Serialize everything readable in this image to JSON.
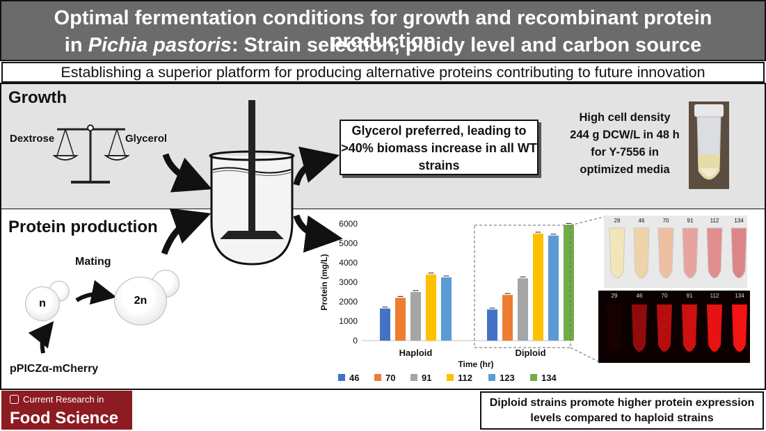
{
  "title": {
    "line1": "Optimal fermentation conditions for growth and recombinant protein production",
    "line2_pre": "in ",
    "line2_italic": "Pichia pastoris",
    "line2_post": ": Strain selection, ploidy level and carbon source"
  },
  "subtitle": "Establishing a superior platform for producing alternative proteins contributing to future innovation",
  "growth": {
    "heading": "Growth",
    "left_label": "Dextrose",
    "right_label": "Glycerol",
    "finding": "Glycerol preferred, leading to >40% biomass increase in all WT strains",
    "density_line1": "High cell density",
    "density_line2": "244 g DCW/L in 48 h",
    "density_line3": "for Y-7556 in",
    "density_line4": "optimized media"
  },
  "protein": {
    "heading": "Protein production",
    "mating": "Mating",
    "haploid_cell": "n",
    "diploid_cell": "2n",
    "plasmid": "pPICZα-mCherry"
  },
  "tube_labels": [
    "29",
    "46",
    "70",
    "91",
    "112",
    "134"
  ],
  "chart_data": {
    "type": "bar",
    "categories": [
      "Haploid",
      "Diploid"
    ],
    "xlabel": "Time (hr)",
    "ylabel": "Protein (mg/L)",
    "ylim": [
      0,
      6000
    ],
    "yticks": [
      0,
      1000,
      2000,
      3000,
      4000,
      5000,
      6000
    ],
    "series": [
      {
        "name": "46",
        "color": "#4472c4",
        "values": [
          1650,
          1600
        ]
      },
      {
        "name": "70",
        "color": "#ed7d31",
        "values": [
          2200,
          2350
        ]
      },
      {
        "name": "91",
        "color": "#a5a5a5",
        "values": [
          2500,
          3200
        ]
      },
      {
        "name": "112",
        "color": "#ffc000",
        "values": [
          3400,
          5500
        ]
      },
      {
        "name": "123",
        "color": "#5b9bd5",
        "values": [
          3250,
          5400
        ]
      },
      {
        "name": "134",
        "color": "#70ad47",
        "values": [
          null,
          5950
        ]
      }
    ]
  },
  "footer": {
    "journal_line1": "Current Research in",
    "journal_line2": "Food Science",
    "conclusion": "Diploid strains promote higher protein expression levels compared to haploid strains"
  }
}
